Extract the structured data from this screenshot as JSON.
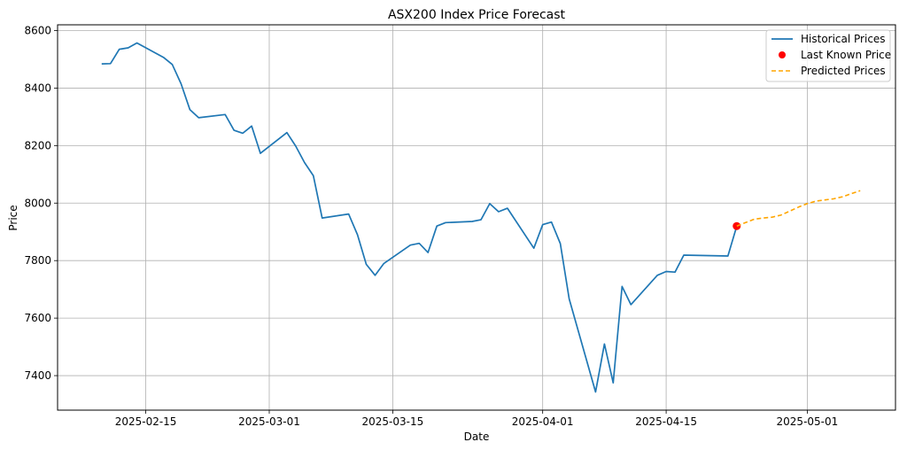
{
  "chart_data": {
    "type": "line",
    "title": "ASX200 Index Price Forecast",
    "xlabel": "Date",
    "ylabel": "Price",
    "x_ticks": [
      "2025-02-15",
      "2025-03-01",
      "2025-03-15",
      "2025-04-01",
      "2025-04-15",
      "2025-05-01"
    ],
    "y_ticks": [
      "7400",
      "7600",
      "7800",
      "8000",
      "8200",
      "8400",
      "8600"
    ],
    "xlim": [
      "2025-02-05",
      "2025-05-11"
    ],
    "ylim": [
      7280,
      8620
    ],
    "grid": true,
    "legend_position": "top-right",
    "legend": [
      "Historical Prices",
      "Last Known Price",
      "Predicted Prices"
    ],
    "series": [
      {
        "name": "Historical Prices",
        "style": "solid",
        "color": "#1f77b4",
        "points": [
          [
            "2025-02-10",
            8484
          ],
          [
            "2025-02-11",
            8485
          ],
          [
            "2025-02-12",
            8535
          ],
          [
            "2025-02-13",
            8540
          ],
          [
            "2025-02-14",
            8557
          ],
          [
            "2025-02-17",
            8507
          ],
          [
            "2025-02-18",
            8482
          ],
          [
            "2025-02-19",
            8415
          ],
          [
            "2025-02-20",
            8325
          ],
          [
            "2025-02-21",
            8297
          ],
          [
            "2025-02-24",
            8308
          ],
          [
            "2025-02-25",
            8253
          ],
          [
            "2025-02-26",
            8243
          ],
          [
            "2025-02-27",
            8268
          ],
          [
            "2025-02-28",
            8173
          ],
          [
            "2025-03-03",
            8245
          ],
          [
            "2025-03-04",
            8198
          ],
          [
            "2025-03-05",
            8141
          ],
          [
            "2025-03-06",
            8095
          ],
          [
            "2025-03-07",
            7948
          ],
          [
            "2025-03-10",
            7962
          ],
          [
            "2025-03-11",
            7890
          ],
          [
            "2025-03-12",
            7787
          ],
          [
            "2025-03-13",
            7749
          ],
          [
            "2025-03-14",
            7790
          ],
          [
            "2025-03-17",
            7854
          ],
          [
            "2025-03-18",
            7860
          ],
          [
            "2025-03-19",
            7828
          ],
          [
            "2025-03-20",
            7920
          ],
          [
            "2025-03-21",
            7932
          ],
          [
            "2025-03-24",
            7936
          ],
          [
            "2025-03-25",
            7942
          ],
          [
            "2025-03-26",
            7998
          ],
          [
            "2025-03-27",
            7970
          ],
          [
            "2025-03-28",
            7982
          ],
          [
            "2025-03-31",
            7843
          ],
          [
            "2025-04-01",
            7925
          ],
          [
            "2025-04-02",
            7934
          ],
          [
            "2025-04-03",
            7859
          ],
          [
            "2025-04-04",
            7667
          ],
          [
            "2025-04-07",
            7343
          ],
          [
            "2025-04-08",
            7510
          ],
          [
            "2025-04-09",
            7375
          ],
          [
            "2025-04-10",
            7710
          ],
          [
            "2025-04-11",
            7647
          ],
          [
            "2025-04-14",
            7749
          ],
          [
            "2025-04-15",
            7762
          ],
          [
            "2025-04-16",
            7760
          ],
          [
            "2025-04-17",
            7819
          ],
          [
            "2025-04-22",
            7816
          ],
          [
            "2025-04-23",
            7920
          ]
        ]
      },
      {
        "name": "Last Known Price",
        "style": "marker",
        "color": "#ff0000",
        "points": [
          [
            "2025-04-23",
            7920
          ]
        ]
      },
      {
        "name": "Predicted Prices",
        "style": "dashed",
        "color": "#ffa500",
        "points": [
          [
            "2025-04-23",
            7920
          ],
          [
            "2025-04-24",
            7932
          ],
          [
            "2025-04-25",
            7944
          ],
          [
            "2025-04-26",
            7948
          ],
          [
            "2025-04-27",
            7951
          ],
          [
            "2025-04-28",
            7958
          ],
          [
            "2025-04-29",
            7972
          ],
          [
            "2025-04-30",
            7986
          ],
          [
            "2025-05-01",
            7998
          ],
          [
            "2025-05-02",
            8007
          ],
          [
            "2025-05-03",
            8011
          ],
          [
            "2025-05-04",
            8015
          ],
          [
            "2025-05-05",
            8022
          ],
          [
            "2025-05-06",
            8033
          ],
          [
            "2025-05-07",
            8043
          ]
        ]
      }
    ]
  }
}
